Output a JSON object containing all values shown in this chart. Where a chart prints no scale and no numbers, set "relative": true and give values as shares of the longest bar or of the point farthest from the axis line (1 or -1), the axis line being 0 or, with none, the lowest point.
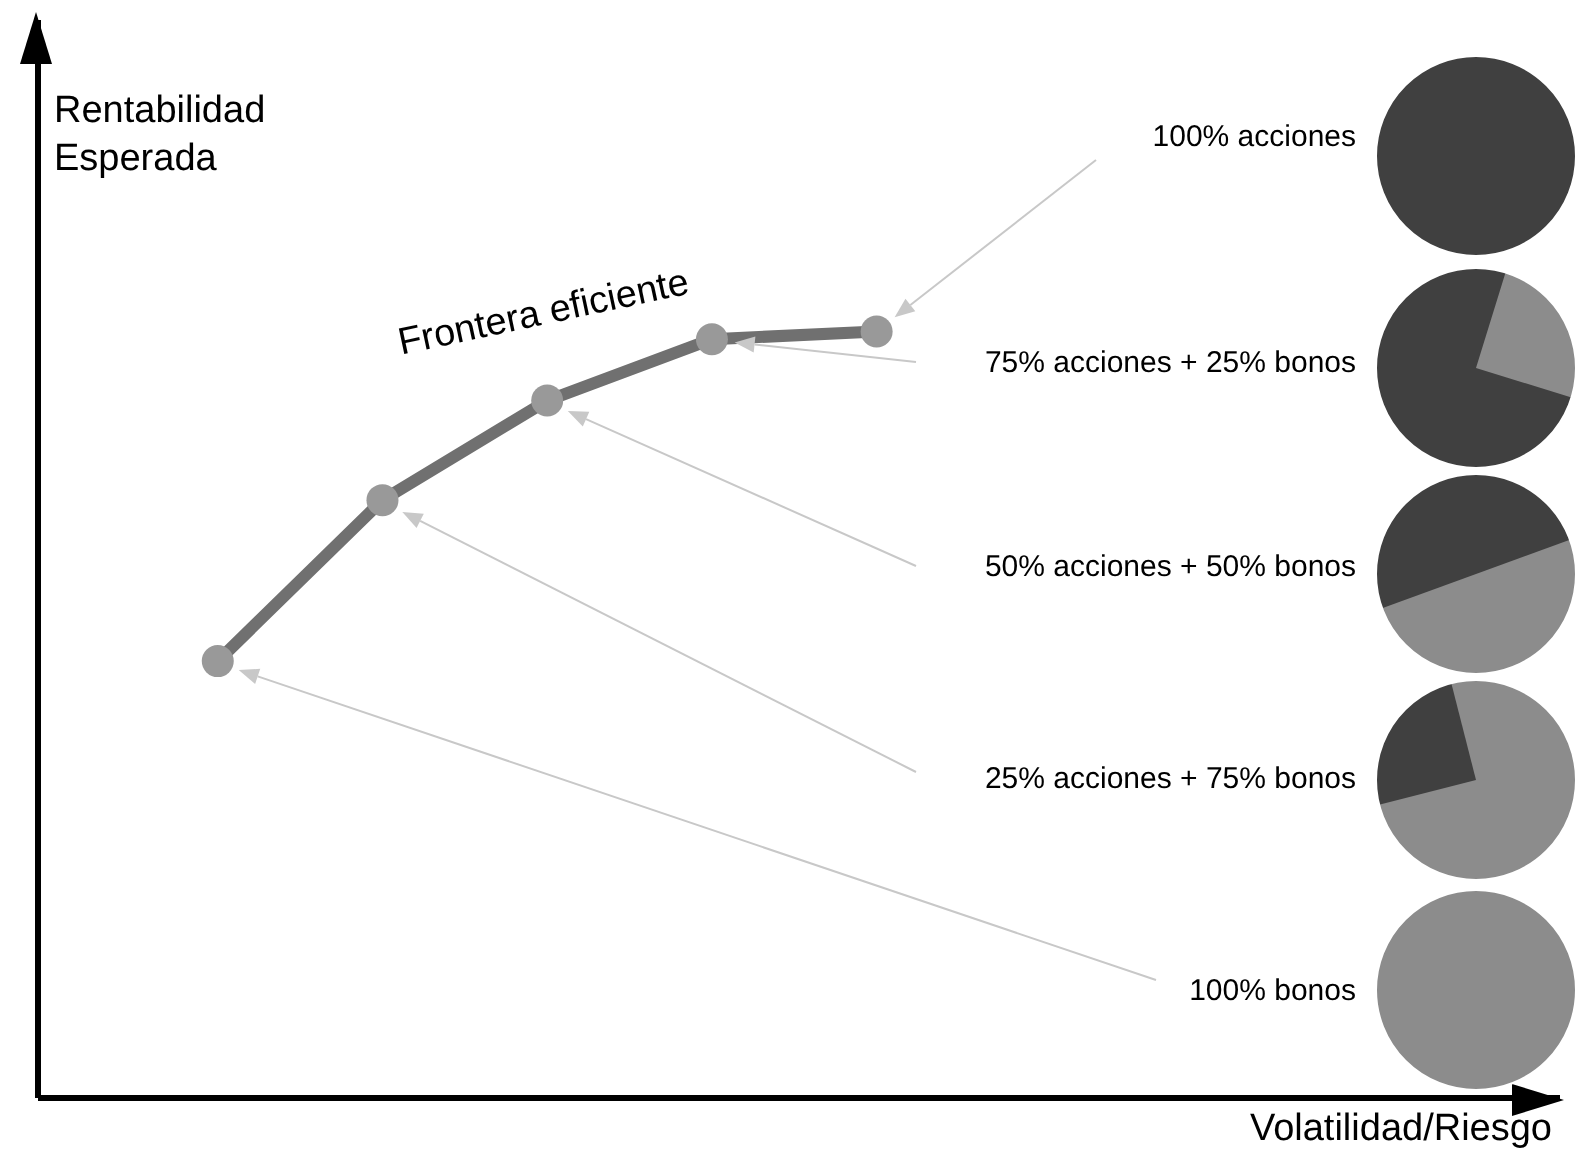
{
  "chart_data": {
    "type": "line",
    "categories": [
      null,
      null,
      null,
      null,
      null
    ],
    "ylabel": "Rentabilidad Esperada",
    "relative": true,
    "marker": "circle",
    "line_style": "solid",
    "series": [
      {
        "name": "Frontera eficiente",
        "color": "#707070",
        "values": [
          0.57,
          0.78,
          0.91,
          0.99,
          1
        ]
      }
    ],
    "annotations": [
      "100% acciones",
      "75% acciones + 25% bonos",
      "50% acciones + 50% bonos",
      "25% acciones + 75% bonos",
      "100% bonos",
      "Volatilidad/Riesgo"
    ]
  }
}
